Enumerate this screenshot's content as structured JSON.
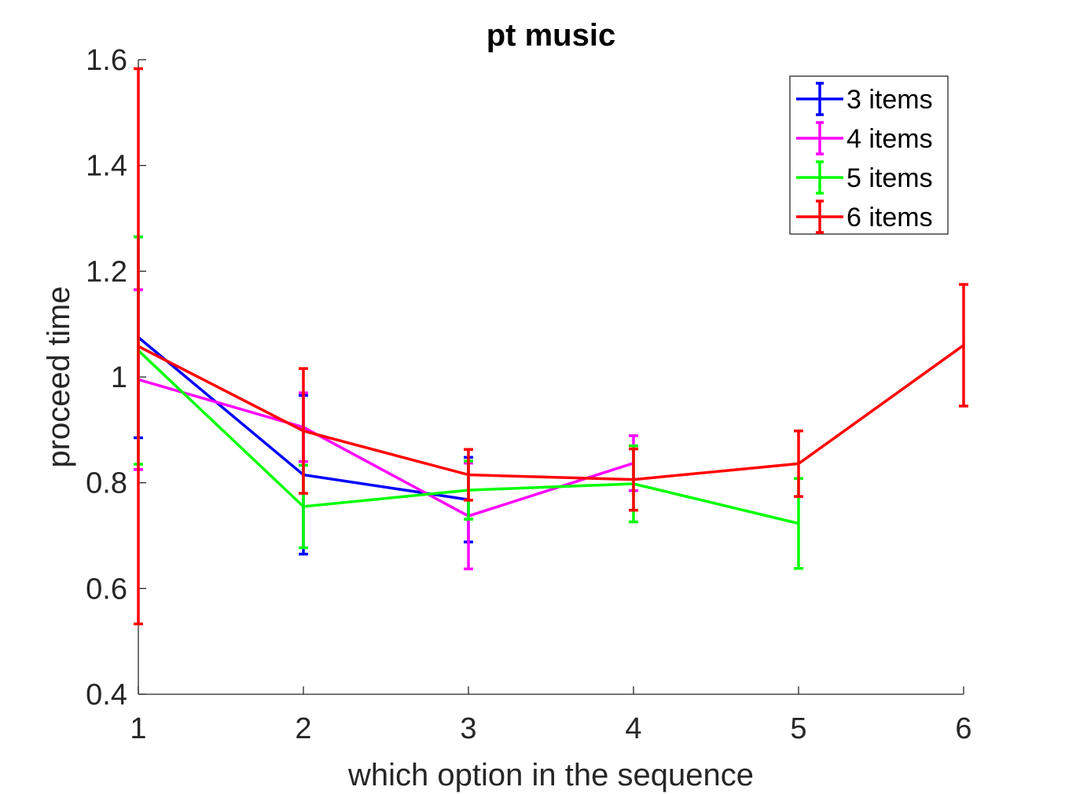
{
  "chart_data": {
    "type": "line",
    "title": "pt music",
    "xlabel": "which option in the sequence",
    "ylabel": "proceed time",
    "xlim": [
      1,
      6
    ],
    "ylim": [
      0.4,
      1.6
    ],
    "xticks": [
      "1",
      "2",
      "3",
      "4",
      "5",
      "6"
    ],
    "yticks": [
      "0.4",
      "0.6",
      "0.8",
      "1",
      "1.2",
      "1.4",
      "1.6"
    ],
    "grid": false,
    "legend_position": "top-right",
    "error_bars": true,
    "series": [
      {
        "name": "3 items",
        "color": "#0000ff",
        "x": [
          1,
          2,
          3
        ],
        "y": [
          1.075,
          0.815,
          0.768
        ],
        "err": [
          0.19,
          0.15,
          0.08
        ]
      },
      {
        "name": "4 items",
        "color": "#ff00ff",
        "x": [
          1,
          2,
          3,
          4
        ],
        "y": [
          0.995,
          0.905,
          0.737,
          0.837
        ],
        "err": [
          0.17,
          0.065,
          0.1,
          0.052
        ]
      },
      {
        "name": "5 items",
        "color": "#00ff00",
        "x": [
          1,
          2,
          3,
          4,
          5
        ],
        "y": [
          1.05,
          0.755,
          0.786,
          0.798,
          0.723
        ],
        "err": [
          0.215,
          0.078,
          0.055,
          0.072,
          0.085
        ]
      },
      {
        "name": "6 items",
        "color": "#ff0000",
        "x": [
          1,
          2,
          3,
          4,
          5,
          6
        ],
        "y": [
          1.058,
          0.898,
          0.815,
          0.806,
          0.836,
          1.06
        ],
        "err": [
          0.525,
          0.118,
          0.048,
          0.058,
          0.062,
          0.115
        ]
      }
    ]
  }
}
